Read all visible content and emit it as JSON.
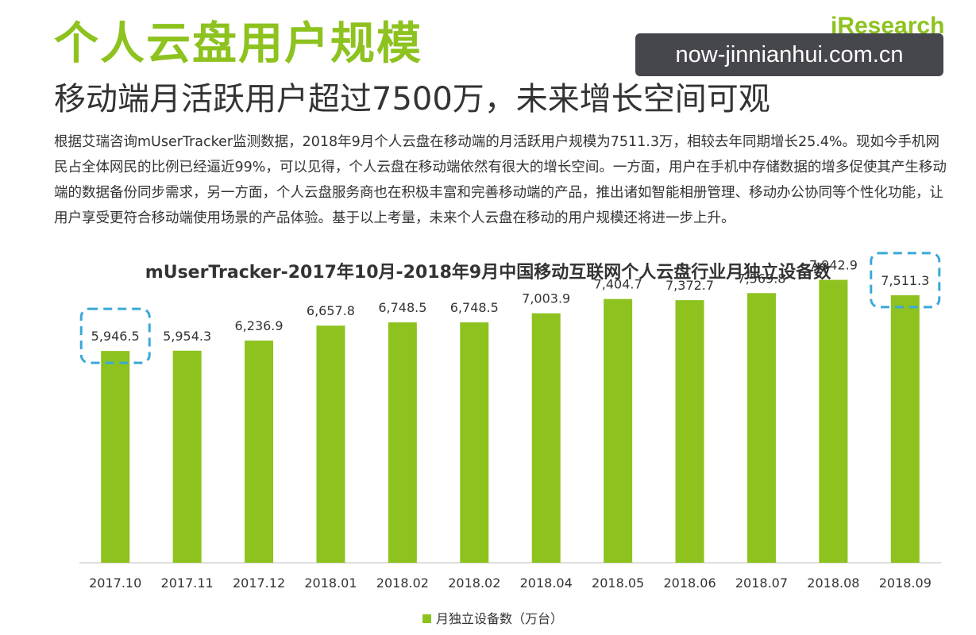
{
  "header": {
    "title": "个人云盘用户规模",
    "subtitle": "移动端月活跃用户超过7500万，未来增长空间可观",
    "logo_text": "iResearch",
    "watermark": "now-jinnianhui.com.cn"
  },
  "paragraph": "根据艾瑞咨询mUserTracker监测数据，2018年9月个人云盘在移动端的月活跃用户规模为7511.3万，相较去年同期增长25.4%。现如今手机网民占全体网民的比例已经逼近99%，可以见得，个人云盘在移动端依然有很大的增长空间。一方面，用户在手机中存储数据的增多促使其产生移动端的数据备份同步需求，另一方面，个人云盘服务商也在积极丰富和完善移动端的产品，推出诸如智能相册管理、移动办公协同等个性化功能，让用户享受更符合移动端使用场景的产品体验。基于以上考量，未来个人云盘在移动的用户规模还将进一步上升。",
  "colors": {
    "bar": "#8dc21f",
    "highlight": "#3aa8d8",
    "title": "#8dc21f"
  },
  "chart_data": {
    "type": "bar",
    "title": "mUserTracker-2017年10月-2018年9月中国移动互联网个人云盘行业月独立设备数",
    "categories": [
      "2017.10",
      "2017.11",
      "2017.12",
      "2018.01",
      "2018.02",
      "2018.02",
      "2018.04",
      "2018.05",
      "2018.06",
      "2018.07",
      "2018.08",
      "2018.09"
    ],
    "series": [
      {
        "name": "月独立设备数（万台）",
        "values": [
          5946.5,
          5954.3,
          6236.9,
          6657.8,
          6748.5,
          6748.5,
          7003.9,
          7404.7,
          7372.7,
          7569.8,
          7942.9,
          7511.3
        ],
        "labels": [
          "5,946.5",
          "5,954.3",
          "6,236.9",
          "6,657.8",
          "6,748.5",
          "6,748.5",
          "7,003.9",
          "7,404.7",
          "7,372.7",
          "7,569.8",
          "7,942.9",
          "7,511.3"
        ]
      }
    ],
    "highlighted_indices": [
      0,
      11
    ],
    "ylim": [
      0,
      8000
    ],
    "grid": false,
    "legend_position": "bottom"
  }
}
